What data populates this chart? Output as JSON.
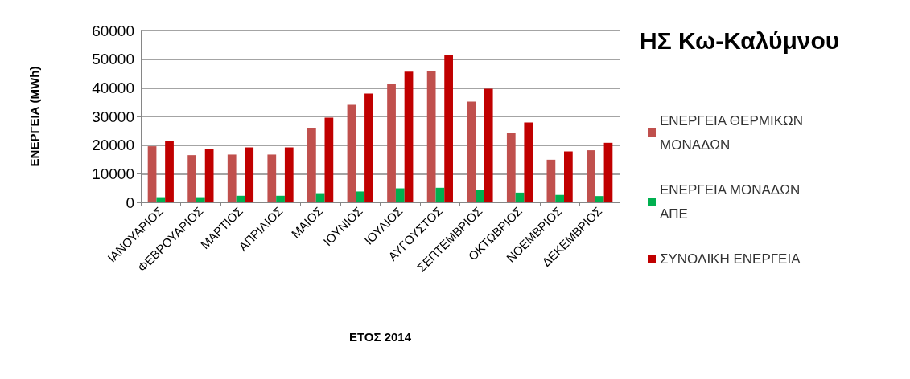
{
  "chart_data": {
    "type": "bar",
    "title": "ΗΣ Κω-Καλύμνου",
    "xlabel": "ΕΤΟΣ 2014",
    "ylabel": "ΕΝΕΡΓΕΙΑ (MWh)",
    "categories": [
      "ΙΑΝΟΥΑΡΙΟΣ",
      "ΦΕΒΡΟΥΑΡΙΟΣ",
      "ΜΑΡΤΙΟΣ",
      "ΑΠΡΙΛΙΟΣ",
      "ΜΑΙΟΣ",
      "ΙΟΥΝΙΟΣ",
      "ΙΟΥΛΙΟΣ",
      "ΑΥΓΟΥΣΤΟΣ",
      "ΣΕΠΤΕΜΒΡΙΟΣ",
      "ΟΚΤΩΒΡΙΟΣ",
      "ΝΟΕΜΒΡΙΟΣ",
      "ΔΕΚΕΜΒΡΙΟΣ"
    ],
    "series": [
      {
        "name": "ΕΝΕΡΓΕΙΑ ΘΕΡΜΙΚΩΝ ΜΟΝΑΔΩΝ",
        "color": "#c0504d",
        "values": [
          19600,
          16500,
          16700,
          16700,
          26000,
          34100,
          41400,
          45900,
          35200,
          24100,
          14900,
          18200
        ]
      },
      {
        "name": "ΕΝΕΡΓΕΙΑ ΜΟΝΑΔΩΝ ΑΠΕ",
        "color": "#00b050",
        "values": [
          1800,
          1800,
          2300,
          2300,
          3200,
          3800,
          4900,
          5100,
          4200,
          3400,
          2600,
          2200
        ]
      },
      {
        "name": "ΣΥΝΟΛΙΚΗ ΕΝΕΡΓΕΙΑ",
        "color": "#c00000",
        "values": [
          21500,
          18600,
          19200,
          19200,
          29600,
          38000,
          45600,
          51400,
          39700,
          27900,
          17800,
          20800
        ]
      }
    ],
    "ylim": [
      0,
      60000
    ],
    "yticks": [
      0,
      10000,
      20000,
      30000,
      40000,
      50000,
      60000
    ],
    "grid": "y",
    "legend": "right"
  }
}
